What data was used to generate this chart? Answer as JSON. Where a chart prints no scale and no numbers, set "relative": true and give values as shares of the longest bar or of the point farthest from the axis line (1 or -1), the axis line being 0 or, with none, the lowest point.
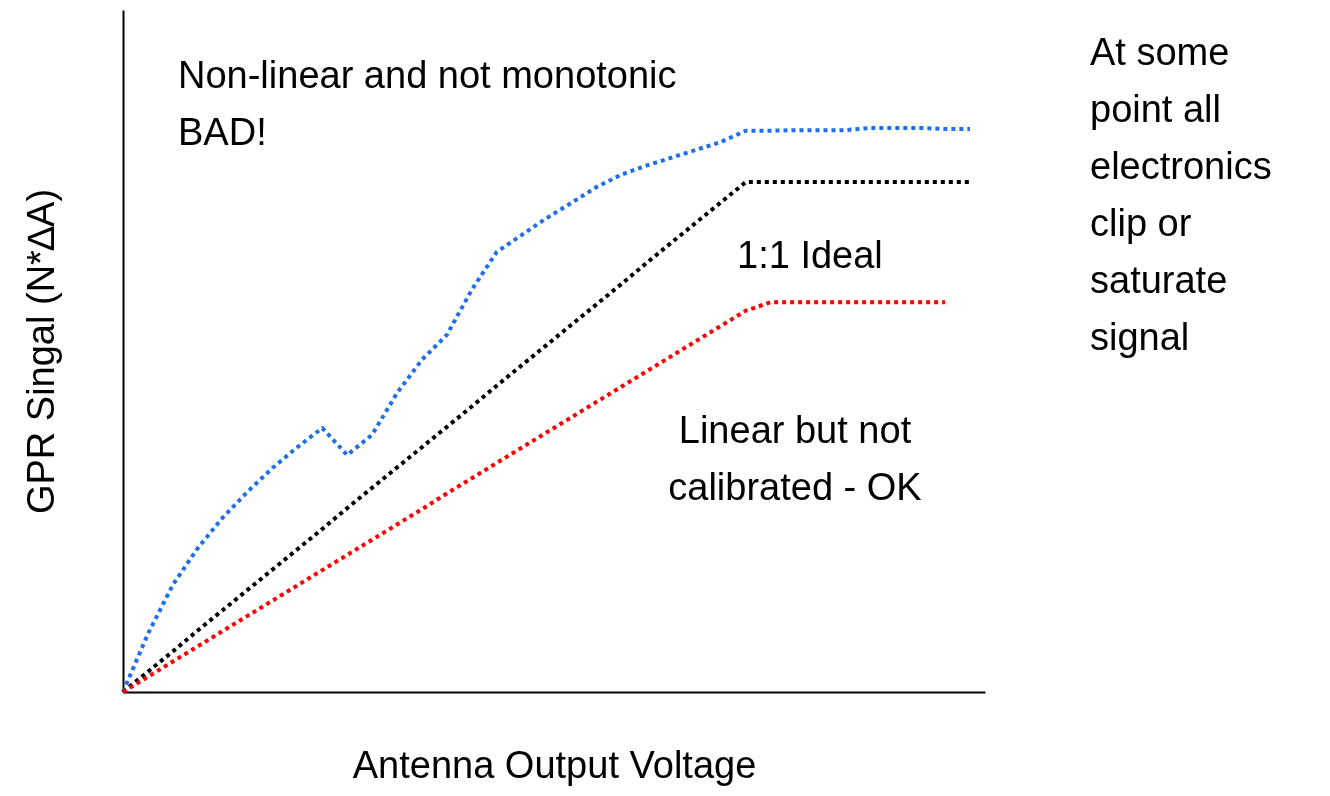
{
  "chart_data": {
    "type": "line",
    "relative": true,
    "xlabel": "Antenna Output Voltage",
    "ylabel": "GPR Singal (N*∆A)",
    "categories": [
      null,
      null,
      null,
      null,
      null,
      null,
      null,
      null,
      null,
      null,
      null,
      null,
      null,
      null,
      null,
      null,
      null,
      null,
      null,
      null,
      null,
      null,
      null,
      null,
      null,
      null,
      null,
      null,
      null,
      null,
      null,
      null,
      null,
      null,
      null
    ],
    "series": [
      {
        "color": "#1f6fe8",
        "values": [
          0,
          0.103,
          0.19,
          0.255,
          0.309,
          0.355,
          0.397,
          0.434,
          0.468,
          0.42,
          0.456,
          0.53,
          0.589,
          0.633,
          0.713,
          0.78,
          0.81,
          0.84,
          0.867,
          0.895,
          0.917,
          0.933,
          0.947,
          0.961,
          0.975,
          0.995,
          0.995,
          0.996,
          0.996,
          0.996,
          1,
          1,
          1,
          0.998,
          0.998
        ]
      },
      {
        "color": "#000000",
        "values": [
          0,
          0.036,
          0.072,
          0.109,
          0.145,
          0.181,
          0.217,
          0.253,
          0.289,
          0.326,
          0.362,
          0.398,
          0.434,
          0.47,
          0.506,
          0.543,
          0.579,
          0.615,
          0.651,
          0.687,
          0.723,
          0.76,
          0.796,
          0.832,
          0.868,
          0.904,
          0.904,
          0.904,
          0.904,
          0.904,
          0.904,
          0.904,
          0.904,
          0.904,
          0.904
        ]
      },
      {
        "color": "#ff0000",
        "values": [
          0,
          0.027,
          0.054,
          0.081,
          0.108,
          0.135,
          0.162,
          0.189,
          0.216,
          0.243,
          0.27,
          0.297,
          0.324,
          0.352,
          0.379,
          0.406,
          0.433,
          0.46,
          0.487,
          0.514,
          0.541,
          0.568,
          0.595,
          0.622,
          0.649,
          0.676,
          0.691,
          0.691,
          0.691,
          0.691,
          0.691,
          0.691,
          0.691,
          0.691,
          null
        ]
      }
    ],
    "annotations": [
      "Non-linear and not monotonic\nBAD!",
      "1:1 Ideal",
      "Linear but not\n calibrated - OK",
      "At some\npoint all\nelectronics\nclip or\nsaturate\nsignal"
    ],
    "line_style": "dotted",
    "grid": false,
    "legend": false
  }
}
